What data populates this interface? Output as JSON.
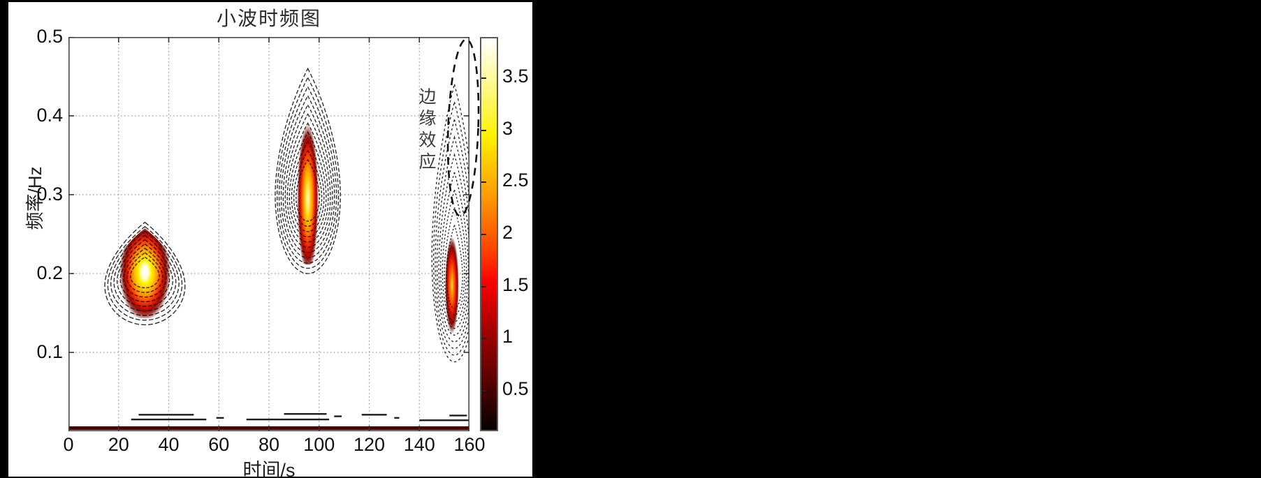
{
  "colors": {
    "canvas_bg": "#000000",
    "figure_bg": "#ffffff",
    "grid": "#9a9a9a",
    "axis_box": "#4a4a4a",
    "tick": "#333333",
    "contour_line": "#0d0d0d",
    "text": "#1c1c1c",
    "annotation_line": "#111111",
    "edge_band_red": "#520000",
    "edge_band_dark": "#1f0000"
  },
  "chart_data": {
    "type": "heatmap",
    "variant": "wavelet-time-frequency-contour",
    "title": "小波时频图",
    "xlabel": "时间/s",
    "ylabel": "频率/Hz",
    "xlim": [
      0,
      160
    ],
    "ylim": [
      0,
      0.5
    ],
    "xticks": [
      0,
      20,
      40,
      60,
      80,
      100,
      120,
      140,
      160
    ],
    "yticks": [
      0.1,
      0.2,
      0.3,
      0.4,
      0.5
    ],
    "grid": "dotted",
    "colormap": "hot",
    "colorbar": {
      "ticks": [
        0.5,
        1,
        1.5,
        2,
        2.5,
        3,
        3.5
      ],
      "vmin": 0.1,
      "vmax": 3.88,
      "gradient": [
        [
          0.0,
          "#060000"
        ],
        [
          0.08,
          "#3a0000"
        ],
        [
          0.16,
          "#6f0000"
        ],
        [
          0.24,
          "#9b0000"
        ],
        [
          0.31,
          "#cc0000"
        ],
        [
          0.375,
          "#f80000"
        ],
        [
          0.45,
          "#ff3c00"
        ],
        [
          0.52,
          "#ff6a00"
        ],
        [
          0.6,
          "#ff9d00"
        ],
        [
          0.68,
          "#ffc800"
        ],
        [
          0.75,
          "#fff200"
        ],
        [
          0.83,
          "#fff658"
        ],
        [
          0.9,
          "#fffa9e"
        ],
        [
          1.0,
          "#ffffff"
        ]
      ]
    },
    "blobs": [
      {
        "name": "component-1",
        "time_center": 30.5,
        "time_halfwidth": 16,
        "freq_top": 0.265,
        "freq_bottom": 0.135,
        "freq_core": 0.202,
        "peak_value": 3.8,
        "levels": 9,
        "core_freq_radius": 0.062,
        "core_aspect": 0.64,
        "dash": [
          6,
          2.5
        ],
        "core_gradient": [
          [
            0.0,
            "#ffffff"
          ],
          [
            0.13,
            "#fffde0"
          ],
          [
            0.25,
            "#fff200"
          ],
          [
            0.38,
            "#ffc400"
          ],
          [
            0.5,
            "#ff8a00"
          ],
          [
            0.62,
            "#ff3800"
          ],
          [
            0.72,
            "#d81400"
          ],
          [
            0.8,
            "#a30800"
          ],
          [
            0.88,
            "rgba(130,8,0,0.75)"
          ],
          [
            1.0,
            "rgba(120,8,0,0)"
          ]
        ]
      },
      {
        "name": "component-2",
        "time_center": 95.5,
        "time_halfwidth": 13,
        "freq_top": 0.46,
        "freq_bottom": 0.2,
        "freq_core": 0.295,
        "peak_value": 3.3,
        "levels": 11,
        "core_freq_radius": 0.095,
        "core_aspect": 0.33,
        "dash": [
          5,
          2.5
        ],
        "core_gradient": [
          [
            0.0,
            "#fff7c8"
          ],
          [
            0.14,
            "#ffe96a"
          ],
          [
            0.28,
            "#ffc800"
          ],
          [
            0.44,
            "#ff8c00"
          ],
          [
            0.58,
            "#ff3a00"
          ],
          [
            0.7,
            "#d31100"
          ],
          [
            0.8,
            "#a00700"
          ],
          [
            0.88,
            "rgba(130,8,0,0.7)"
          ],
          [
            1.0,
            "rgba(120,8,0,0)"
          ]
        ]
      },
      {
        "name": "component-3-edge-effect",
        "time_center": 154,
        "time_halfwidth": 9,
        "freq_top": 0.44,
        "freq_bottom": 0.088,
        "freq_core": 0.185,
        "peak_value": 2.6,
        "levels": 9,
        "core_freq_radius": 0.062,
        "core_aspect": 0.31,
        "core_time_center": 153,
        "dash": [
          3,
          3
        ],
        "core_gradient": [
          [
            0.0,
            "#ffcf6e"
          ],
          [
            0.15,
            "#ffa400"
          ],
          [
            0.33,
            "#ff6000"
          ],
          [
            0.5,
            "#f02500"
          ],
          [
            0.65,
            "#c00c00"
          ],
          [
            0.78,
            "#8d0400"
          ],
          [
            0.88,
            "rgba(110,5,0,0.65)"
          ],
          [
            1.0,
            "rgba(100,4,0,0)"
          ]
        ]
      }
    ],
    "edge_band": {
      "description": "dark red artifact band along the bottom of the plot",
      "freq": 0.006,
      "dash_rows": [
        {
          "t0": 25,
          "t1": 55,
          "f": 0.016
        },
        {
          "t0": 59,
          "t1": 62,
          "f": 0.018
        },
        {
          "t0": 71,
          "t1": 104,
          "f": 0.016
        },
        {
          "t0": 86,
          "t1": 103,
          "f": 0.023
        },
        {
          "t0": 106,
          "t1": 109,
          "f": 0.02
        },
        {
          "t0": 117,
          "t1": 127,
          "f": 0.022
        },
        {
          "t0": 130,
          "t1": 132,
          "f": 0.018
        },
        {
          "t0": 140,
          "t1": 160,
          "f": 0.015
        },
        {
          "t0": 28,
          "t1": 50,
          "f": 0.022
        },
        {
          "t0": 152,
          "t1": 159,
          "f": 0.021
        }
      ]
    },
    "annotation": {
      "label": "边缘效应",
      "ellipse_time_center": 157.5,
      "ellipse_freq_center": 0.385,
      "ellipse_time_radius": 6,
      "ellipse_freq_radius": 0.112,
      "ellipse_rotation_deg": 2
    }
  }
}
